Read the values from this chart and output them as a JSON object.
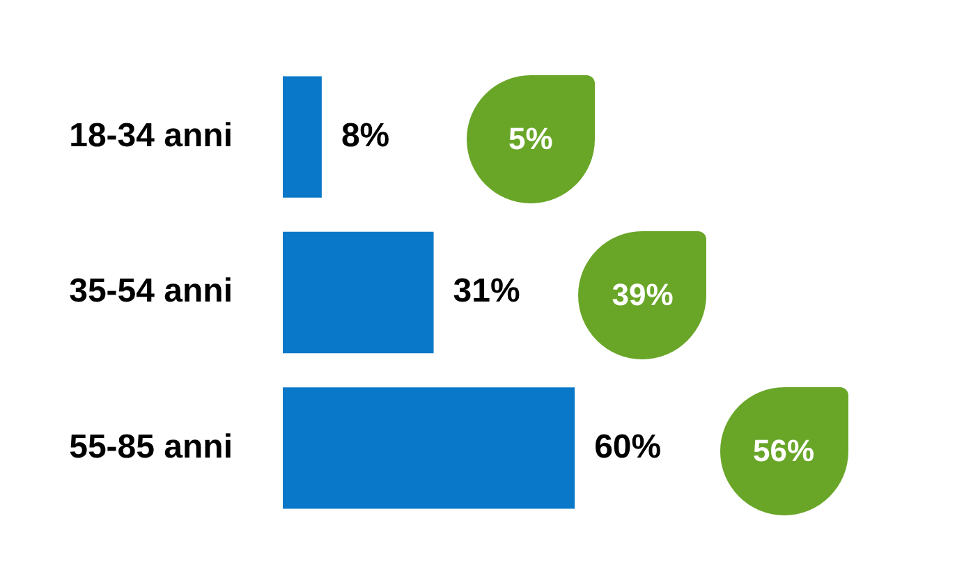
{
  "chart_data": {
    "type": "bar",
    "orientation": "horizontal",
    "categories": [
      "18-34 anni",
      "35-54 anni",
      "55-85 anni"
    ],
    "values": [
      8,
      31,
      60
    ],
    "color": "#0a78c8",
    "value_labels": [
      "8%",
      "31%",
      "60%"
    ],
    "tick_labels": "y",
    "legend": false,
    "annotations": [
      "5%",
      "39%",
      "56%"
    ]
  }
}
